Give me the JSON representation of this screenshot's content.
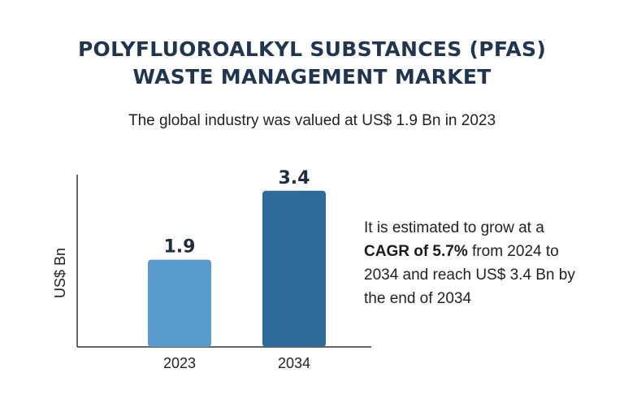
{
  "header": {
    "title_line1": "POLYFLUOROALKYL SUBSTANCES (PFAS)",
    "title_line2": "WASTE MANAGEMENT MARKET",
    "subtitle": "The global industry was valued at US$ 1.9 Bn in 2023"
  },
  "chart_data": {
    "type": "bar",
    "categories": [
      "2023",
      "2034"
    ],
    "values": [
      1.9,
      3.4
    ],
    "data_labels": [
      "1.9",
      "3.4"
    ],
    "xlabel": "",
    "ylabel": "US$ Bn",
    "ylim": [
      0,
      3.75
    ],
    "grid": false,
    "legend": "none",
    "colors": [
      "#5a9bcd",
      "#2e6a9a"
    ]
  },
  "summary": {
    "part1": "It is estimated to grow at a ",
    "highlight": "CAGR of 5.7%",
    "part2": " from 2024 to 2034 and reach US$ 3.4 Bn by the end of 2034"
  }
}
